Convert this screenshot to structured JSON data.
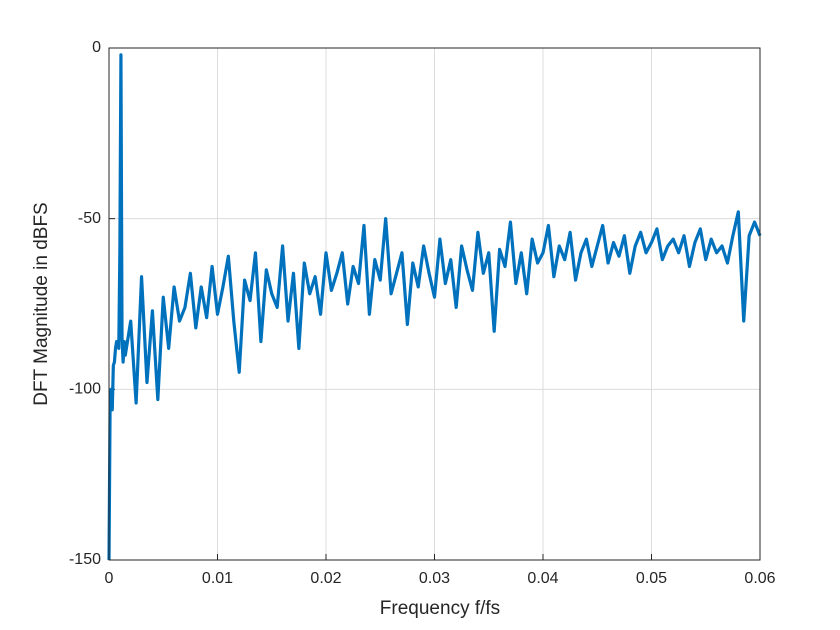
{
  "chart_data": {
    "type": "line",
    "xlabel": "Frequency f/fs",
    "ylabel": "DFT Magnitude in dBFS",
    "xlim": [
      0,
      0.06
    ],
    "xticks": [
      0,
      0.01,
      0.02,
      0.03,
      0.04,
      0.05,
      0.06
    ],
    "ylim": [
      -150,
      0
    ],
    "yticks": [
      -150,
      -100,
      -50,
      0
    ],
    "grid": true,
    "x": [
      0,
      0.0001,
      0.0002,
      0.0003,
      0.0004,
      0.0005,
      0.0006,
      0.0007,
      0.0008,
      0.0009,
      0.001,
      0.0011,
      0.0012,
      0.0013,
      0.0014,
      0.0015,
      0.002,
      0.0025,
      0.003,
      0.0035,
      0.004,
      0.0045,
      0.005,
      0.0055,
      0.006,
      0.0065,
      0.007,
      0.0075,
      0.008,
      0.0085,
      0.009,
      0.0095,
      0.01,
      0.0105,
      0.011,
      0.0115,
      0.012,
      0.0125,
      0.013,
      0.0135,
      0.014,
      0.0145,
      0.015,
      0.0155,
      0.016,
      0.0165,
      0.017,
      0.0175,
      0.018,
      0.0185,
      0.019,
      0.0195,
      0.02,
      0.0205,
      0.021,
      0.0215,
      0.022,
      0.0225,
      0.023,
      0.0235,
      0.024,
      0.0245,
      0.025,
      0.0255,
      0.026,
      0.0265,
      0.027,
      0.0275,
      0.028,
      0.0285,
      0.029,
      0.0295,
      0.03,
      0.0305,
      0.031,
      0.0315,
      0.032,
      0.0325,
      0.033,
      0.0335,
      0.034,
      0.0345,
      0.035,
      0.0355,
      0.036,
      0.0365,
      0.037,
      0.0375,
      0.038,
      0.0385,
      0.039,
      0.0395,
      0.04,
      0.0405,
      0.041,
      0.0415,
      0.042,
      0.0425,
      0.043,
      0.0435,
      0.044,
      0.0445,
      0.045,
      0.0455,
      0.046,
      0.0465,
      0.047,
      0.0475,
      0.048,
      0.0485,
      0.049,
      0.0495,
      0.05,
      0.0505,
      0.051,
      0.0515,
      0.052,
      0.0525,
      0.053,
      0.0535,
      0.054,
      0.0545,
      0.055,
      0.0555,
      0.056,
      0.0565,
      0.057,
      0.0575,
      0.058,
      0.0585,
      0.059,
      0.0595,
      0.06
    ],
    "series": [
      {
        "color": "#0072bd",
        "values": [
          -150,
          -105,
          -100,
          -106,
          -93,
          -92,
          -88,
          -86,
          -86,
          -88,
          -60,
          -2,
          -85,
          -92,
          -86,
          -90,
          -80,
          -104,
          -67,
          -98,
          -77,
          -103,
          -73,
          -88,
          -70,
          -80,
          -76,
          -66,
          -82,
          -70,
          -79,
          -64,
          -78,
          -70,
          -61,
          -80,
          -95,
          -68,
          -74,
          -60,
          -86,
          -65,
          -72,
          -76,
          -58,
          -80,
          -66,
          -88,
          -63,
          -72,
          -67,
          -78,
          -60,
          -71,
          -66,
          -60,
          -75,
          -64,
          -69,
          -52,
          -78,
          -62,
          -68,
          -50,
          -72,
          -66,
          -60,
          -81,
          -63,
          -70,
          -58,
          -66,
          -73,
          -56,
          -69,
          -62,
          -76,
          -58,
          -65,
          -71,
          -54,
          -66,
          -60,
          -83,
          -59,
          -64,
          -51,
          -69,
          -60,
          -72,
          -56,
          -63,
          -60,
          -52,
          -67,
          -58,
          -62,
          -54,
          -68,
          -60,
          -56,
          -64,
          -58,
          -52,
          -63,
          -57,
          -61,
          -55,
          -66,
          -58,
          -54,
          -60,
          -57,
          -53,
          -62,
          -58,
          -56,
          -60,
          -55,
          -64,
          -57,
          -53,
          -62,
          -56,
          -60,
          -58,
          -63,
          -55,
          -48,
          -80,
          -55,
          -51,
          -55
        ]
      }
    ]
  }
}
